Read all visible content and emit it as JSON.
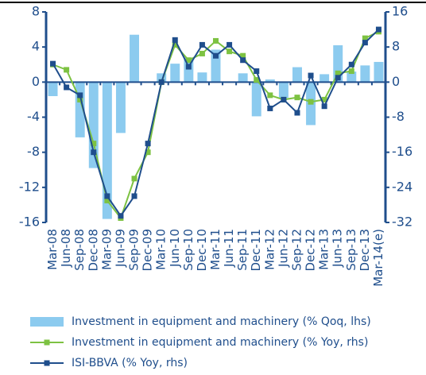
{
  "chart_data": {
    "type": "bar",
    "categories": [
      "Mar-08",
      "Jun-08",
      "Sep-08",
      "Dec-08",
      "Mar-09",
      "Jun-09",
      "Sep-09",
      "Dec-09",
      "Mar-10",
      "Jun-10",
      "Sep-10",
      "Dec-10",
      "Mar-11",
      "Jun-11",
      "Sep-11",
      "Dec-11",
      "Mar-12",
      "Jun-12",
      "Sep-12",
      "Dec-12",
      "Mar-13",
      "Jun-13",
      "Sep-13",
      "Dec-13",
      "Mar-14(e)"
    ],
    "ylim": [
      -16,
      8
    ],
    "yticks": [
      -16,
      -12,
      -8,
      -4,
      0,
      4,
      8
    ],
    "y2lim": [
      -32,
      16
    ],
    "y2ticks": [
      -32,
      -24,
      -16,
      -8,
      0,
      8,
      16
    ],
    "series": [
      {
        "name": "Investment in equipment and machinery (% Qoq, lhs)",
        "type": "bar",
        "axis": "y",
        "color": "#8ccbef",
        "values": [
          -1.6,
          0,
          -6.3,
          -9.8,
          -15.6,
          -5.8,
          5.4,
          0,
          1.0,
          2.1,
          2.8,
          1.1,
          3.7,
          0,
          1.0,
          -3.9,
          0.3,
          -1.8,
          1.7,
          -4.9,
          0.9,
          4.2,
          1.2,
          1.9,
          2.3
        ]
      },
      {
        "name": "Investment in equipment and machinery (% Yoy, rhs)",
        "type": "line",
        "axis": "y2",
        "color": "#7dc242",
        "values": [
          4,
          2.8,
          -4,
          -14,
          -27,
          -31,
          -22,
          -16,
          0,
          8.5,
          5,
          6.5,
          9.4,
          7,
          6,
          0.5,
          -3,
          -4,
          -3.5,
          -4.5,
          -4,
          2,
          2.5,
          10,
          11.5
        ]
      },
      {
        "name": "ISI-BBVA (% Yoy, rhs)",
        "type": "line",
        "axis": "y2",
        "color": "#1f4e8c",
        "values": [
          4.2,
          -1.2,
          -3,
          -16,
          -26,
          -30.5,
          -26,
          -14,
          0,
          9.6,
          3.5,
          8.5,
          6,
          8.5,
          5,
          2.5,
          -6,
          -4,
          -7,
          1.5,
          -5.5,
          1,
          4,
          9,
          12
        ]
      }
    ]
  }
}
